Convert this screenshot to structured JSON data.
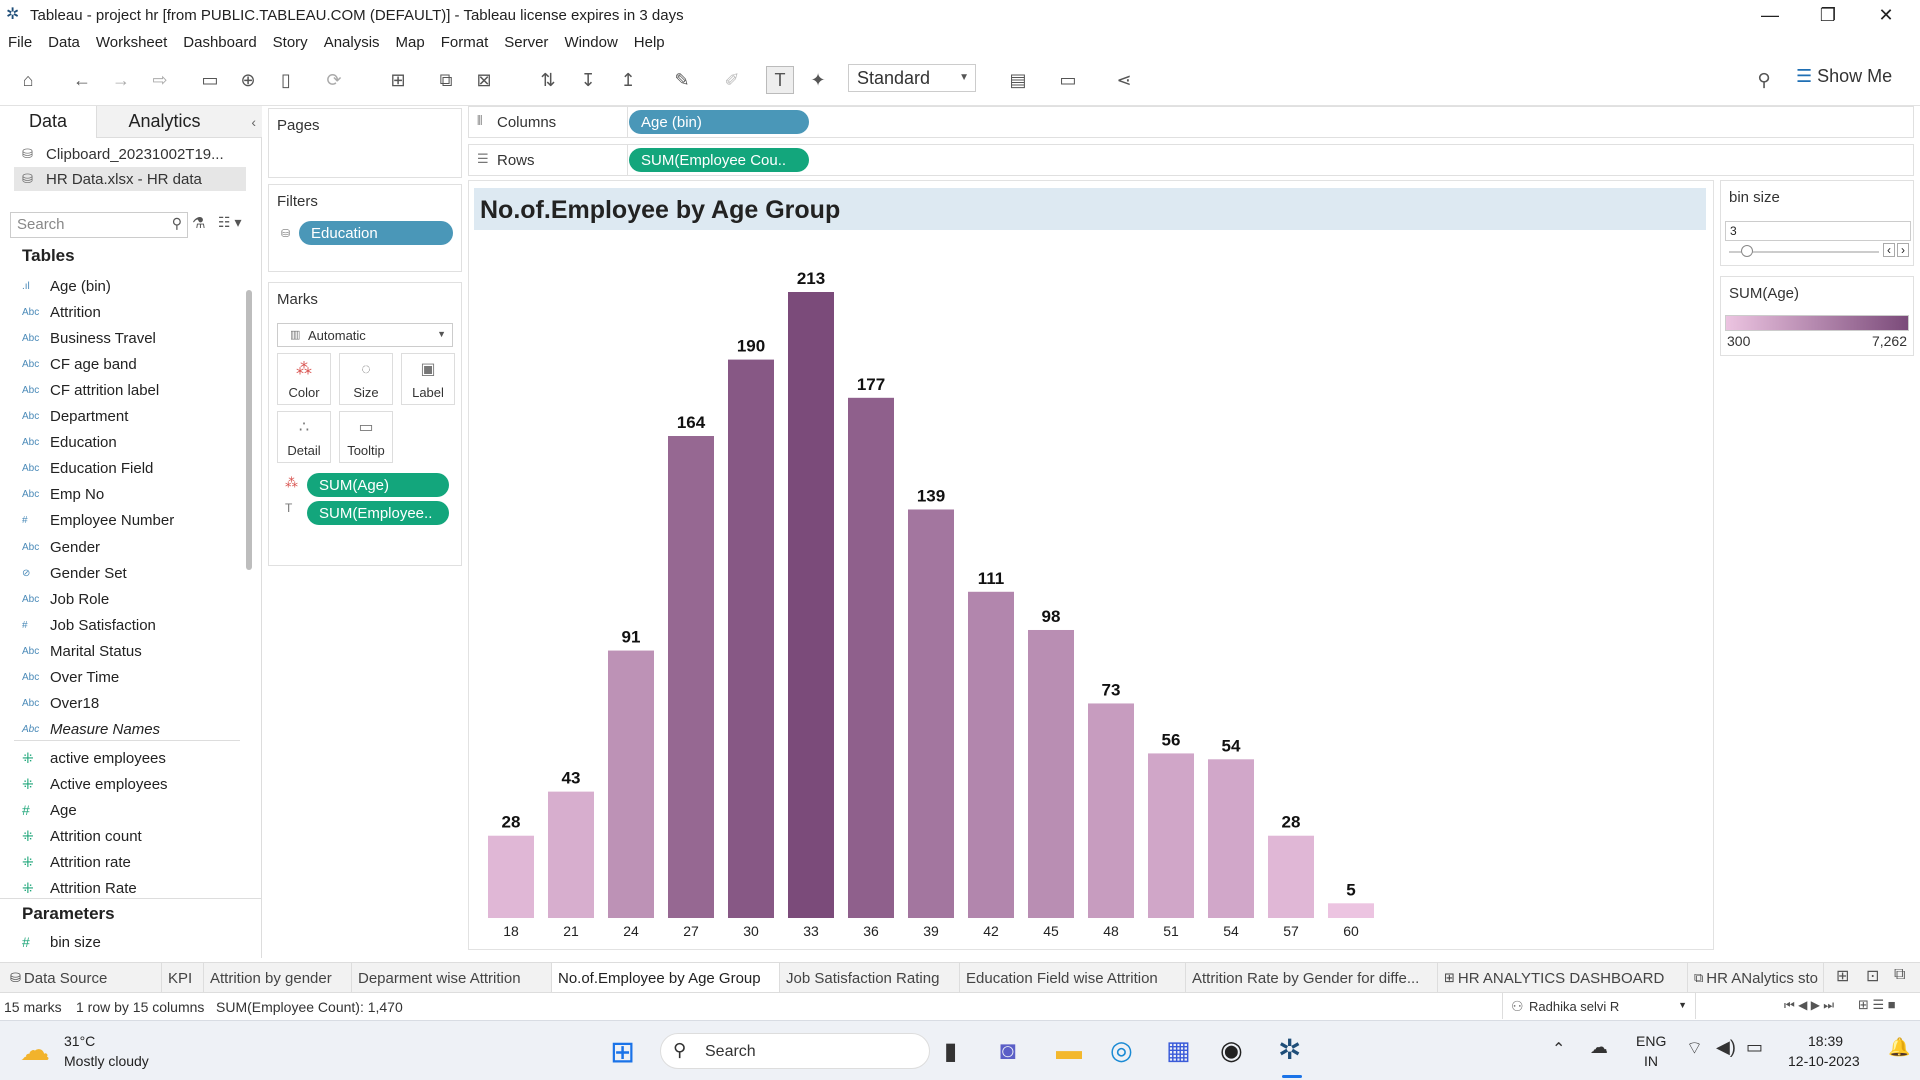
{
  "window": {
    "title": "Tableau - project hr [from PUBLIC.TABLEAU.COM (DEFAULT)] - Tableau license expires in 3 days"
  },
  "menu": [
    "File",
    "Data",
    "Worksheet",
    "Dashboard",
    "Story",
    "Analysis",
    "Map",
    "Format",
    "Server",
    "Window",
    "Help"
  ],
  "toolbar": {
    "fit_mode": "Standard",
    "show_me": "Show Me"
  },
  "data_pane": {
    "tab_data": "Data",
    "tab_analytics": "Analytics",
    "datasources": [
      "Clipboard_20231002T19...",
      "HR Data.xlsx - HR data"
    ],
    "search_placeholder": "Search",
    "tables_header": "Tables",
    "dimensions": [
      {
        "type": "Abc",
        "name": "Age (bin)",
        "icon": "bin-icon"
      },
      {
        "type": "Abc",
        "name": "Attrition"
      },
      {
        "type": "Abc",
        "name": "Business Travel"
      },
      {
        "type": "Abc",
        "name": "CF age band"
      },
      {
        "type": "Abc",
        "name": "CF attrition label"
      },
      {
        "type": "Abc",
        "name": "Department"
      },
      {
        "type": "Abc",
        "name": "Education"
      },
      {
        "type": "Abc",
        "name": "Education Field"
      },
      {
        "type": "Abc",
        "name": "Emp No"
      },
      {
        "type": "#",
        "name": "Employee Number"
      },
      {
        "type": "Abc",
        "name": "Gender"
      },
      {
        "type": "set",
        "name": "Gender Set"
      },
      {
        "type": "Abc",
        "name": "Job Role"
      },
      {
        "type": "#",
        "name": "Job Satisfaction"
      },
      {
        "type": "Abc",
        "name": "Marital Status"
      },
      {
        "type": "Abc",
        "name": "Over Time"
      },
      {
        "type": "Abc",
        "name": "Over18"
      },
      {
        "type": "Abc",
        "name": "Measure Names"
      }
    ],
    "measures": [
      "active employees",
      "Active employees",
      "Age",
      "Attrition count",
      "Attrition rate",
      "Attrition Rate"
    ],
    "parameters_header": "Parameters",
    "parameters": [
      "bin size"
    ]
  },
  "shelves": {
    "pages_label": "Pages",
    "filters_label": "Filters",
    "filters": [
      "Education"
    ],
    "marks_label": "Marks",
    "mark_type": "Automatic",
    "mark_buttons": [
      "Color",
      "Size",
      "Label",
      "Detail",
      "Tooltip"
    ],
    "mark_pills": [
      "SUM(Age)",
      "SUM(Employee.."
    ],
    "columns_label": "Columns",
    "columns_pill": "Age (bin)",
    "rows_label": "Rows",
    "rows_pill": "SUM(Employee Cou.."
  },
  "legend": {
    "bin_size_label": "bin size",
    "bin_size_value": "3",
    "sum_age_label": "SUM(Age)",
    "sum_age_min": "300",
    "sum_age_max": "7,262"
  },
  "chart_data": {
    "type": "bar",
    "title": "No.of.Employee by Age Group",
    "categories": [
      "18",
      "21",
      "24",
      "27",
      "30",
      "33",
      "36",
      "39",
      "42",
      "45",
      "48",
      "51",
      "54",
      "57",
      "60"
    ],
    "values": [
      28,
      43,
      91,
      164,
      190,
      213,
      177,
      139,
      111,
      98,
      73,
      56,
      54,
      28,
      5
    ],
    "data_labels": [
      "28",
      "43",
      "91",
      "164",
      "190",
      "213",
      "177",
      "139",
      "111",
      "98",
      "73",
      "56",
      "54",
      "28",
      "5"
    ],
    "color_range": [
      "#ecc4e1",
      "#7b4b7a"
    ],
    "ylim": [
      0,
      213
    ]
  },
  "sheet_tabs": [
    {
      "label": "Data Source",
      "icon": "datasource-icon"
    },
    {
      "label": "KPI"
    },
    {
      "label": "Attrition by gender"
    },
    {
      "label": "Deparment wise Attrition"
    },
    {
      "label": "No.of.Employee by Age Group",
      "active": true
    },
    {
      "label": "Job Satisfaction Rating"
    },
    {
      "label": "Education Field wise Attrition"
    },
    {
      "label": "Attrition Rate by Gender for diffe..."
    },
    {
      "label": "HR ANALYTICS DASHBOARD",
      "icon": "dashboard-icon"
    },
    {
      "label": "HR ANalytics sto",
      "icon": "story-icon"
    }
  ],
  "status": {
    "marks": "15 marks",
    "dims": "1 row by 15 columns",
    "sum": "SUM(Employee Count): 1,470",
    "user": "Radhika selvi R"
  },
  "taskbar": {
    "temp": "31°C",
    "weather": "Mostly cloudy",
    "search": "Search",
    "lang1": "ENG",
    "lang2": "IN",
    "time": "18:39",
    "date": "12-10-2023"
  }
}
